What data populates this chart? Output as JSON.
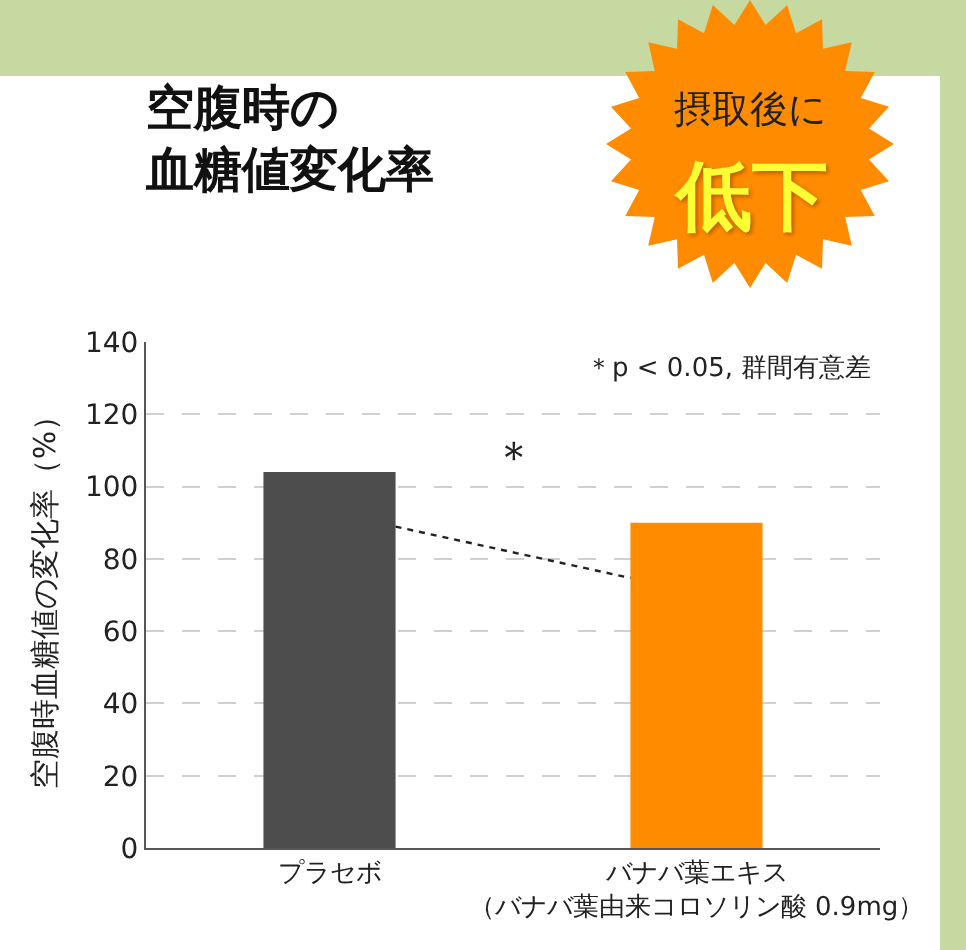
{
  "chart_data": {
    "type": "bar",
    "title": "空腹時の",
    "subtitle": "血糖値変化率",
    "ylabel": "空腹時血糖値の変化率（%）",
    "categories": [
      "プラセボ",
      "バナバ葉エキス（バナバ葉由来コロソリン酸 0.9mg）"
    ],
    "values": [
      104,
      90
    ],
    "colors": [
      "#4d4d4d",
      "#ff8c00"
    ],
    "ylim": [
      0,
      140
    ],
    "yticks": [
      0,
      20,
      40,
      60,
      80,
      100,
      120,
      140
    ],
    "grid": "y",
    "legend": false,
    "annotations": [
      "＊p < 0.05, 群間有意差",
      "＊",
      "摂取後に",
      "低下"
    ]
  }
}
